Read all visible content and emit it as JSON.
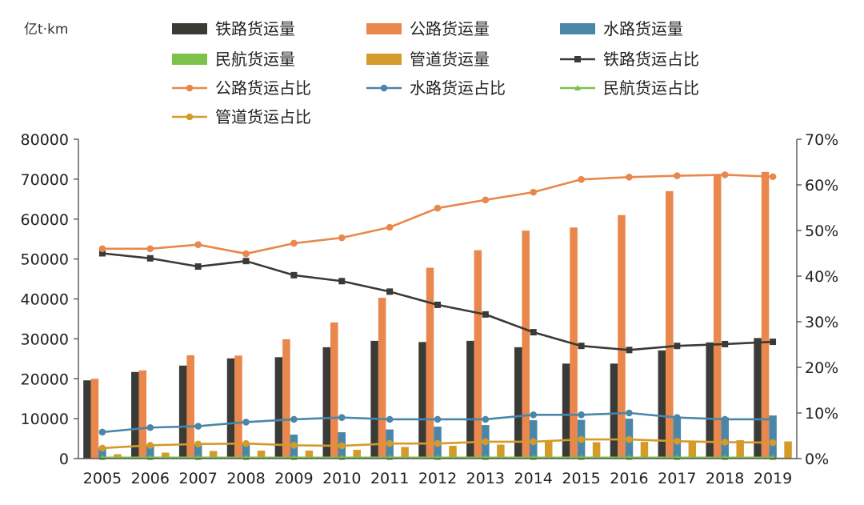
{
  "chart_data": {
    "type": "bar",
    "unit_label": "亿t·km",
    "categories": [
      "2005",
      "2006",
      "2007",
      "2008",
      "2009",
      "2010",
      "2011",
      "2012",
      "2013",
      "2014",
      "2015",
      "2016",
      "2017",
      "2018",
      "2019"
    ],
    "ylim_left": [
      0,
      80000
    ],
    "yticks_left": [
      "0",
      "10000",
      "20000",
      "30000",
      "40000",
      "50000",
      "60000",
      "70000",
      "80000"
    ],
    "ylim_right": [
      0,
      70
    ],
    "yticks_right": [
      "0%",
      "10%",
      "20%",
      "30%",
      "40%",
      "50%",
      "60%",
      "70%"
    ],
    "grid": false,
    "legend_position": "top",
    "bar_series": [
      {
        "name": "铁路货运量",
        "color": "#3a3a37",
        "values": [
          19600,
          21700,
          23300,
          25100,
          25400,
          27900,
          29500,
          29200,
          29500,
          27900,
          23800,
          23800,
          27100,
          29100,
          30200
        ]
      },
      {
        "name": "公路货运量",
        "color": "#e9874c",
        "values": [
          20000,
          22100,
          25900,
          25800,
          29900,
          34100,
          40300,
          47800,
          52200,
          57100,
          57900,
          61000,
          67000,
          71300,
          71800
        ]
      },
      {
        "name": "水路货运量",
        "color": "#4a86a8",
        "values": [
          2800,
          3200,
          3400,
          3700,
          6000,
          6600,
          7300,
          8000,
          8400,
          9600,
          9700,
          10000,
          10400,
          10300,
          10800
        ]
      },
      {
        "name": "民航货运量",
        "color": "#7cc14a",
        "values": [
          80,
          100,
          120,
          120,
          130,
          180,
          170,
          160,
          170,
          190,
          210,
          220,
          240,
          260,
          260
        ]
      },
      {
        "name": "管道货运量",
        "color": "#d49a2a",
        "values": [
          1100,
          1500,
          1900,
          2000,
          2000,
          2200,
          2900,
          3200,
          3500,
          4300,
          4100,
          4200,
          4500,
          4600,
          4300
        ]
      }
    ],
    "line_series": [
      {
        "name": "铁路货运占比",
        "color": "#3a3a37",
        "marker": "square",
        "values": [
          45.0,
          43.9,
          42.1,
          43.3,
          40.2,
          38.9,
          36.6,
          33.7,
          31.6,
          27.7,
          24.7,
          23.8,
          24.7,
          25.1,
          25.6
        ]
      },
      {
        "name": "公路货运占比",
        "color": "#e9874c",
        "marker": "circle",
        "values": [
          46.0,
          46.0,
          46.9,
          44.9,
          47.2,
          48.4,
          50.7,
          54.9,
          56.7,
          58.4,
          61.2,
          61.7,
          62.0,
          62.2,
          61.8
        ]
      },
      {
        "name": "水路货运占比",
        "color": "#4a86a8",
        "marker": "circle",
        "values": [
          5.8,
          6.8,
          7.1,
          8.0,
          8.6,
          9.0,
          8.6,
          8.6,
          8.6,
          9.6,
          9.6,
          10.0,
          9.0,
          8.6,
          8.6
        ]
      },
      {
        "name": "民航货运占比",
        "color": "#7cc14a",
        "marker": "triangle",
        "values": [
          0.2,
          0.2,
          0.2,
          0.2,
          0.2,
          0.2,
          0.2,
          0.2,
          0.2,
          0.2,
          0.2,
          0.2,
          0.2,
          0.2,
          0.2
        ]
      },
      {
        "name": "管道货运占比",
        "color": "#d49a2a",
        "marker": "circle",
        "values": [
          2.3,
          2.9,
          3.2,
          3.3,
          2.9,
          2.8,
          3.3,
          3.3,
          3.7,
          3.7,
          4.2,
          4.2,
          3.8,
          3.6,
          3.5
        ]
      }
    ]
  }
}
